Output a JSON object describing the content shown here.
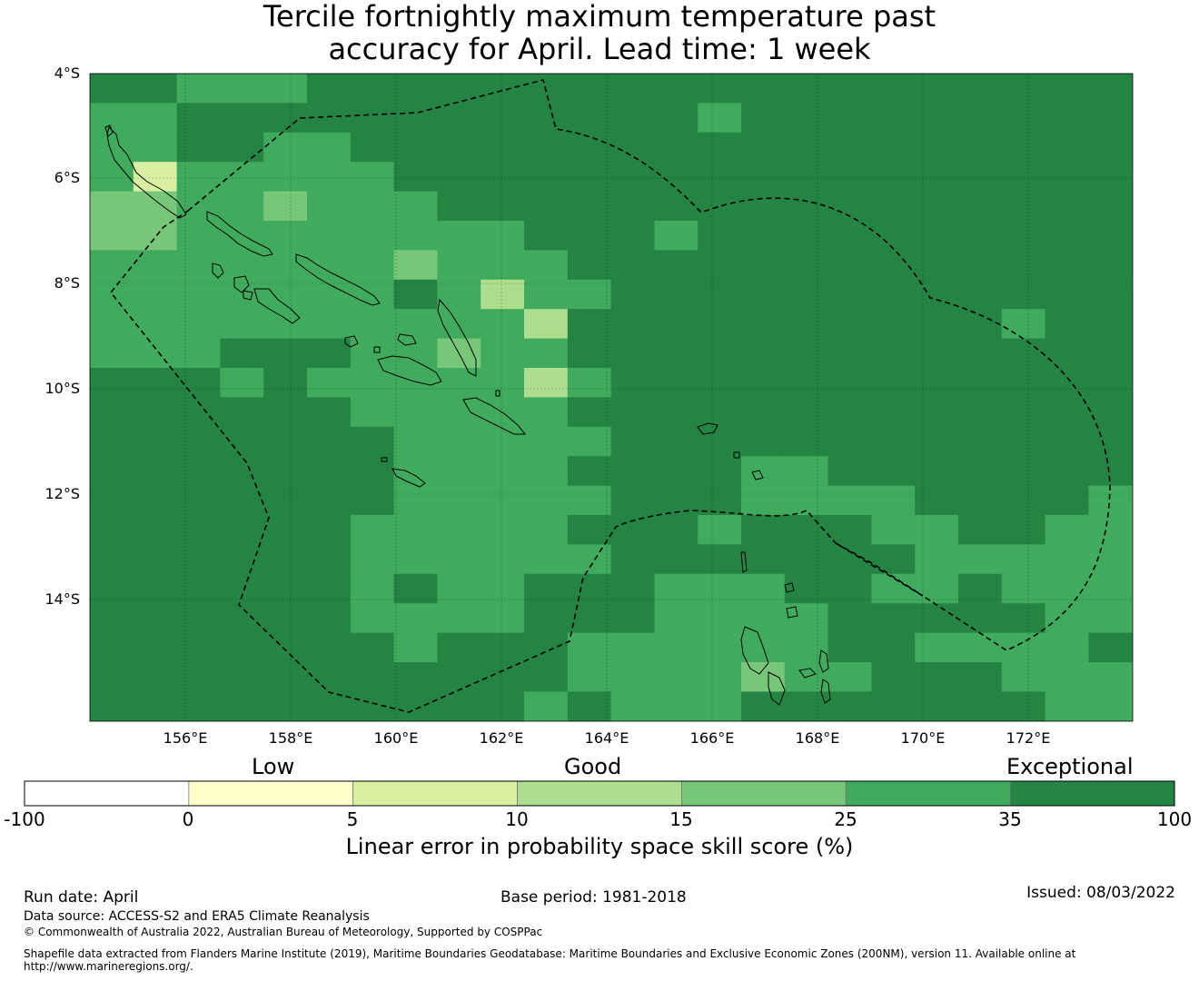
{
  "title": {
    "line1": "Tercile fortnightly maximum temperature past",
    "line2": "accuracy for April. Lead time: 1 week"
  },
  "map": {
    "lat_labels": [
      "4°S",
      "6°S",
      "8°S",
      "10°S",
      "12°S",
      "14°S"
    ],
    "lon_labels": [
      "156°E",
      "158°E",
      "160°E",
      "162°E",
      "164°E",
      "166°E",
      "168°E",
      "170°E",
      "172°E"
    ],
    "lat_range": [
      -16.3,
      -4.0
    ],
    "lon_range": [
      154.2,
      174.0
    ],
    "grid": true,
    "boundary_style": "dashed",
    "skill_grid": {
      "legend": {
        "A": "35 to 100",
        "B": "25 to 35",
        "C": "15 to 25",
        "D": "10 to 15",
        "E": "5 to 10"
      },
      "rows": [
        "AABBBAAAAAAAAAAAAAAAAAAA",
        "BBAAAAAAAAAAAABAAAAAAAAA",
        "BBAABBAAAAAAAAAAAAAAAAAA",
        "BEBBBBBAAAAAAAAAAAAAAAAA",
        "CCBBCBBBAAAAAAAAAAAAAAAA",
        "CCBBBBBBBBAAABAAAAAAAAAA",
        "BBBBBBBCBBBAAAAAAAAAAAAA",
        "BBBBBBBABDBBAAAAAAAAAAAA",
        "BBBBBBBBBBDAAAAAAAAAABAA",
        "BBBAAABBCBBAAAAAAAAAAAAA",
        "AAABABBBBBDBAAAAAAAAAAAA",
        "AAAAAABBBBBAAAAAAAAAAAAA",
        "AAAAAAABBBBBAAAAAAAAAAAA",
        "AAAAAAABBBBAAAABBAAAAAAA",
        "AAAAAAABBBBBAAABBBBAAAAB",
        "AAAAAABBBBBAAABAAABBAABB",
        "AAAAAABBBBBBAAAAAAABBBBB",
        "AAAAAABABBAAABBBAABBABBB",
        "AAAAAABBBBAAABBBBAAAAABB",
        "AAAAAAABAAABBBBBBAABBBBA",
        "AAAAAAAAAAABBBBCBBAAABBB",
        "AAAAAAAAAABABBBAAAAAAABB"
      ]
    }
  },
  "colorbar": {
    "quality_labels": [
      "Low",
      "Good",
      "Exceptional"
    ],
    "ticks": [
      "-100",
      "0",
      "5",
      "10",
      "15",
      "25",
      "35",
      "100"
    ],
    "colors": [
      "#ffffff",
      "#ffffcc",
      "#d9f0a3",
      "#addd8e",
      "#78c679",
      "#41ab5d",
      "#238443"
    ],
    "title": "Linear error in probability space skill score (%)"
  },
  "footer": {
    "run_date": "Run date: April",
    "base_period": "Base period: 1981-2018",
    "issued": "Issued: 08/03/2022",
    "data_source": "Data source: ACCESS-S2 and ERA5 Climate Reanalysis",
    "copyright": "© Commonwealth of Australia 2022, Australian Bureau of Meteorology, Supported by COSPPac",
    "shapefile_line1": "Shapefile data extracted from Flanders Marine Institute (2019), Maritime Boundaries Geodatabase: Maritime Boundaries and Exclusive Economic Zones (200NM), version 11. Available online at",
    "shapefile_line2": "http://www.marineregions.org/."
  },
  "colors": {
    "A": "#238443",
    "B": "#41ab5d",
    "C": "#78c679",
    "D": "#addd8e",
    "E": "#d9f0a3"
  }
}
